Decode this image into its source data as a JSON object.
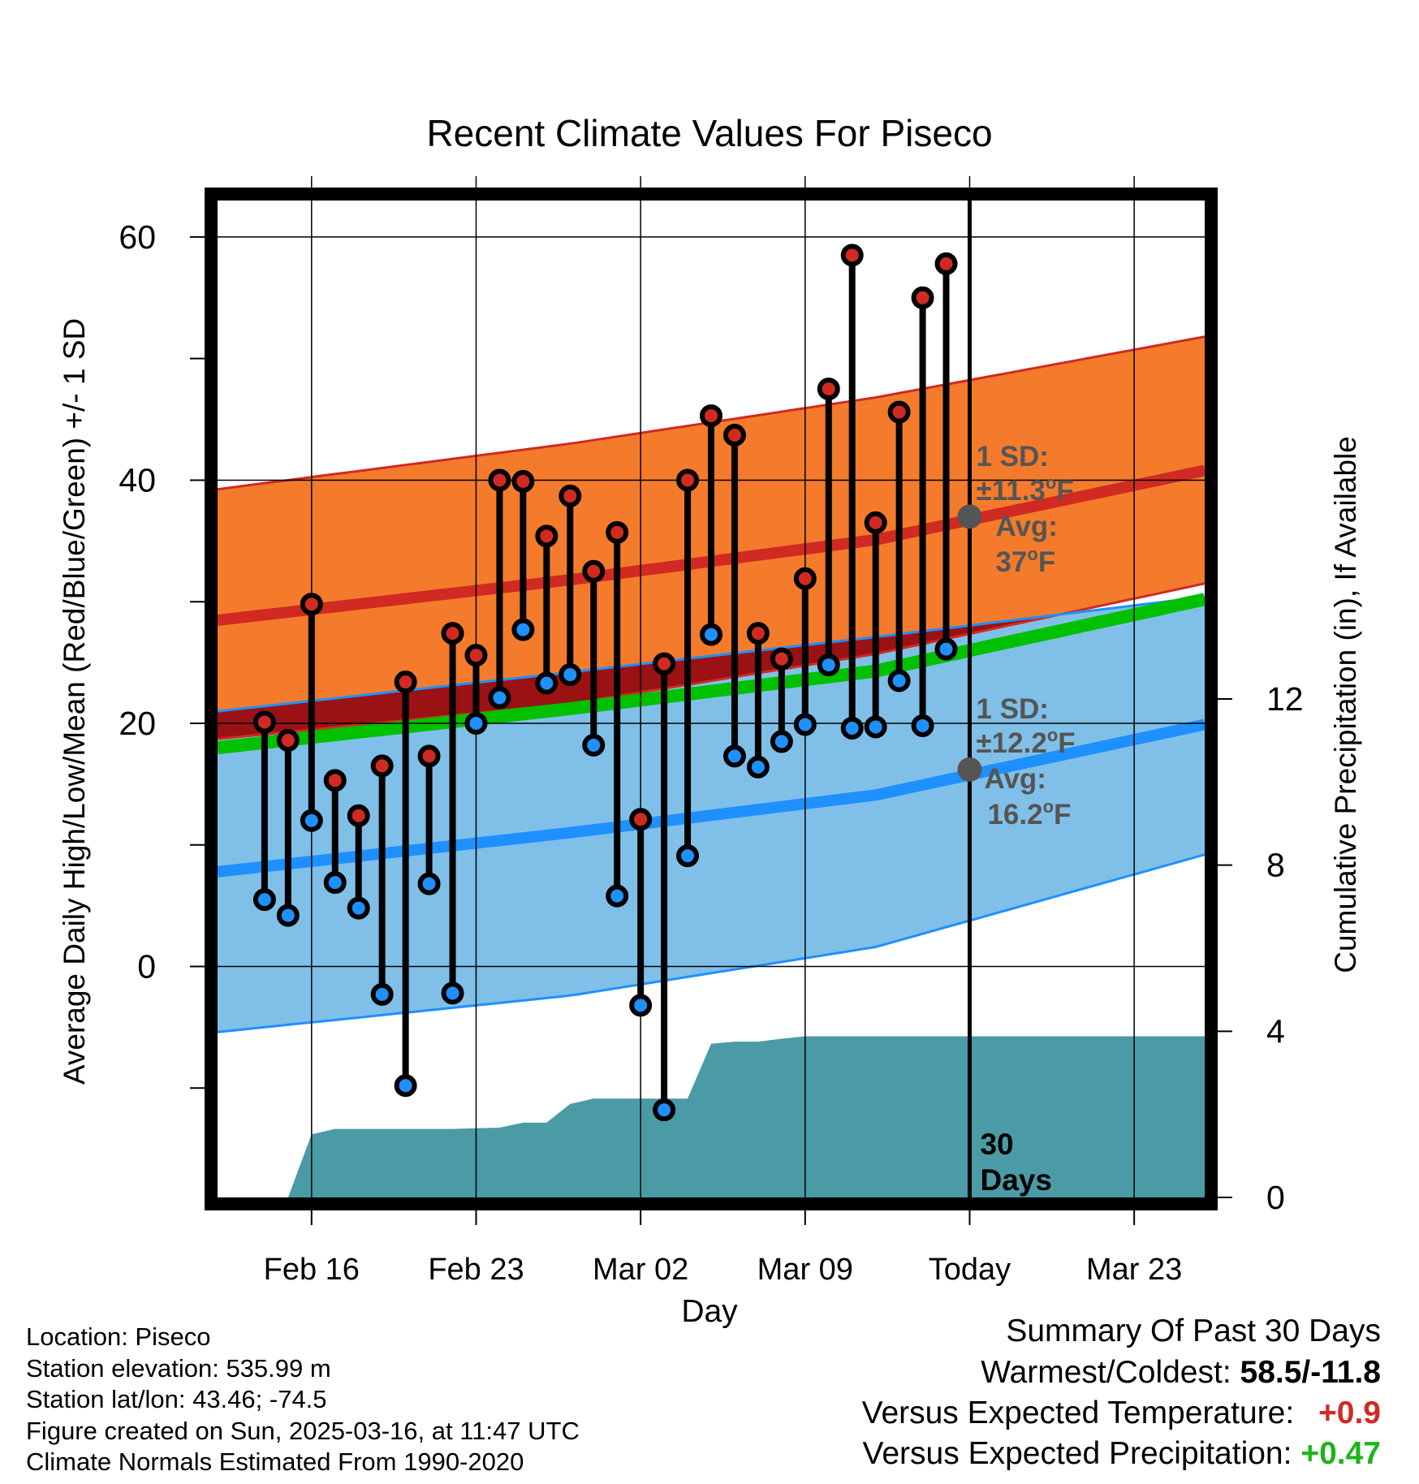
{
  "chart_data": {
    "type": "line",
    "title": "Recent Climate Values For Piseco",
    "xlabel": "Day",
    "ylabel": "Average Daily High/Low/Mean (Red/Blue/Green) +/- 1 SD",
    "y2label": "Cumulative Precipitation (in), If Available",
    "xlim": [
      "2025-02-12",
      "2025-03-26"
    ],
    "ylim": [
      -19,
      63
    ],
    "y2lim": [
      0,
      24
    ],
    "x_ticks": [
      "2025-02-16",
      "2025-02-23",
      "2025-03-02",
      "2025-03-09",
      "2025-03-16",
      "2025-03-23"
    ],
    "x_tick_labels": [
      "Feb 16",
      "Feb 23",
      "Mar 02",
      "Mar 09",
      "Today",
      "Mar 23"
    ],
    "y_ticks": [
      0,
      20,
      40,
      60
    ],
    "y2_ticks": [
      0,
      4,
      8,
      12
    ],
    "grid": true,
    "today": "2025-03-16",
    "today_label": "30\nDays",
    "daily": {
      "dates": [
        "2025-02-14",
        "2025-02-15",
        "2025-02-16",
        "2025-02-17",
        "2025-02-18",
        "2025-02-19",
        "2025-02-20",
        "2025-02-21",
        "2025-02-22",
        "2025-02-23",
        "2025-02-24",
        "2025-02-25",
        "2025-02-26",
        "2025-02-27",
        "2025-02-28",
        "2025-03-01",
        "2025-03-02",
        "2025-03-03",
        "2025-03-04",
        "2025-03-05",
        "2025-03-06",
        "2025-03-07",
        "2025-03-08",
        "2025-03-09",
        "2025-03-10",
        "2025-03-11",
        "2025-03-12",
        "2025-03-13",
        "2025-03-14",
        "2025-03-15"
      ],
      "high": [
        20.1,
        18.6,
        29.8,
        15.3,
        12.4,
        16.5,
        23.4,
        17.3,
        27.4,
        25.6,
        40.0,
        39.9,
        35.4,
        38.7,
        32.5,
        35.7,
        12.1,
        24.9,
        40.0,
        45.3,
        43.7,
        27.4,
        25.3,
        31.9,
        47.5,
        58.5,
        36.5,
        45.6,
        55.0,
        57.8
      ],
      "low": [
        5.5,
        4.2,
        12.0,
        6.9,
        4.8,
        -2.3,
        -9.8,
        6.8,
        -2.2,
        20.0,
        22.1,
        27.7,
        23.3,
        24.0,
        18.2,
        5.8,
        -3.2,
        -11.8,
        9.1,
        27.3,
        17.3,
        16.4,
        18.5,
        19.9,
        24.8,
        19.6,
        19.7,
        23.5,
        19.8,
        26.1
      ]
    },
    "normals": {
      "dates": [
        "2025-02-13",
        "2025-02-27",
        "2025-03-12",
        "2025-03-26"
      ],
      "avg_high": [
        28.7,
        31.8,
        35.1,
        40.8
      ],
      "avg_high_sd_upper": [
        39.5,
        43.0,
        46.8,
        51.8
      ],
      "avg_high_sd_lower": [
        18.9,
        21.6,
        25.7,
        31.5
      ],
      "avg_low": [
        8.0,
        11.0,
        14.1,
        19.9
      ],
      "avg_low_sd_upper": [
        21.2,
        24.2,
        27.1,
        30.4
      ],
      "avg_low_sd_lower": [
        -5.2,
        -2.4,
        1.6,
        9.2
      ],
      "avg_mean": [
        18.2,
        21.2,
        24.3,
        30.2
      ]
    },
    "precipitation": {
      "dates": [
        "2025-02-14",
        "2025-02-15",
        "2025-02-16",
        "2025-02-17",
        "2025-02-18",
        "2025-02-22",
        "2025-02-24",
        "2025-02-25",
        "2025-02-26",
        "2025-02-27",
        "2025-02-28",
        "2025-03-01",
        "2025-03-02",
        "2025-03-03",
        "2025-03-04",
        "2025-03-05",
        "2025-03-06",
        "2025-03-07",
        "2025-03-08",
        "2025-03-09",
        "2025-03-15",
        "2025-03-26"
      ],
      "cumulative": [
        0,
        0,
        1.52,
        1.65,
        1.65,
        1.65,
        1.68,
        1.8,
        1.8,
        2.25,
        2.38,
        2.38,
        2.38,
        2.38,
        2.38,
        3.7,
        3.75,
        3.75,
        3.82,
        3.88,
        3.88,
        3.88
      ]
    },
    "annotations": {
      "high": {
        "sd_label": "1 SD:",
        "sd_value": "±11.3",
        "avg_label": "Avg:",
        "avg_value": "37",
        "unit": "oF",
        "marker_value": 37.0
      },
      "low": {
        "sd_label": "1 SD:",
        "sd_value": "±12.2",
        "avg_label": "Avg:",
        "avg_value": "16.2",
        "unit": "oF",
        "marker_value": 16.2
      }
    },
    "colors": {
      "high_band": "#F47B2C",
      "high_line": "#D12A22",
      "low_band": "#80C0E8",
      "low_line": "#1E90FF",
      "mean_line": "#00C000",
      "overlap": "#9A1214",
      "precip": "#4A9BA6",
      "high_marker": "#D12A22",
      "low_marker": "#1E90FF",
      "annotation": "#555555"
    }
  },
  "footer": {
    "location": "Location: Piseco",
    "elevation": "Station elevation: 535.99 m",
    "latlon": "Station lat/lon: 43.46; -74.5",
    "created": "Figure created on Sun, 2025-03-16, at 11:47 UTC",
    "normals": "Climate Normals Estimated From 1990-2020"
  },
  "summary": {
    "title": "Summary Of Past 30 Days",
    "warm_cold_label": "Warmest/Coldest:",
    "warm_cold_value": "58.5/-11.8",
    "temp_label": "Versus Expected Temperature:",
    "temp_value": "+0.9",
    "temp_color": "#D12A22",
    "precip_label": "Versus Expected Precipitation:",
    "precip_value": "+0.47",
    "precip_color": "#1EB41E"
  }
}
